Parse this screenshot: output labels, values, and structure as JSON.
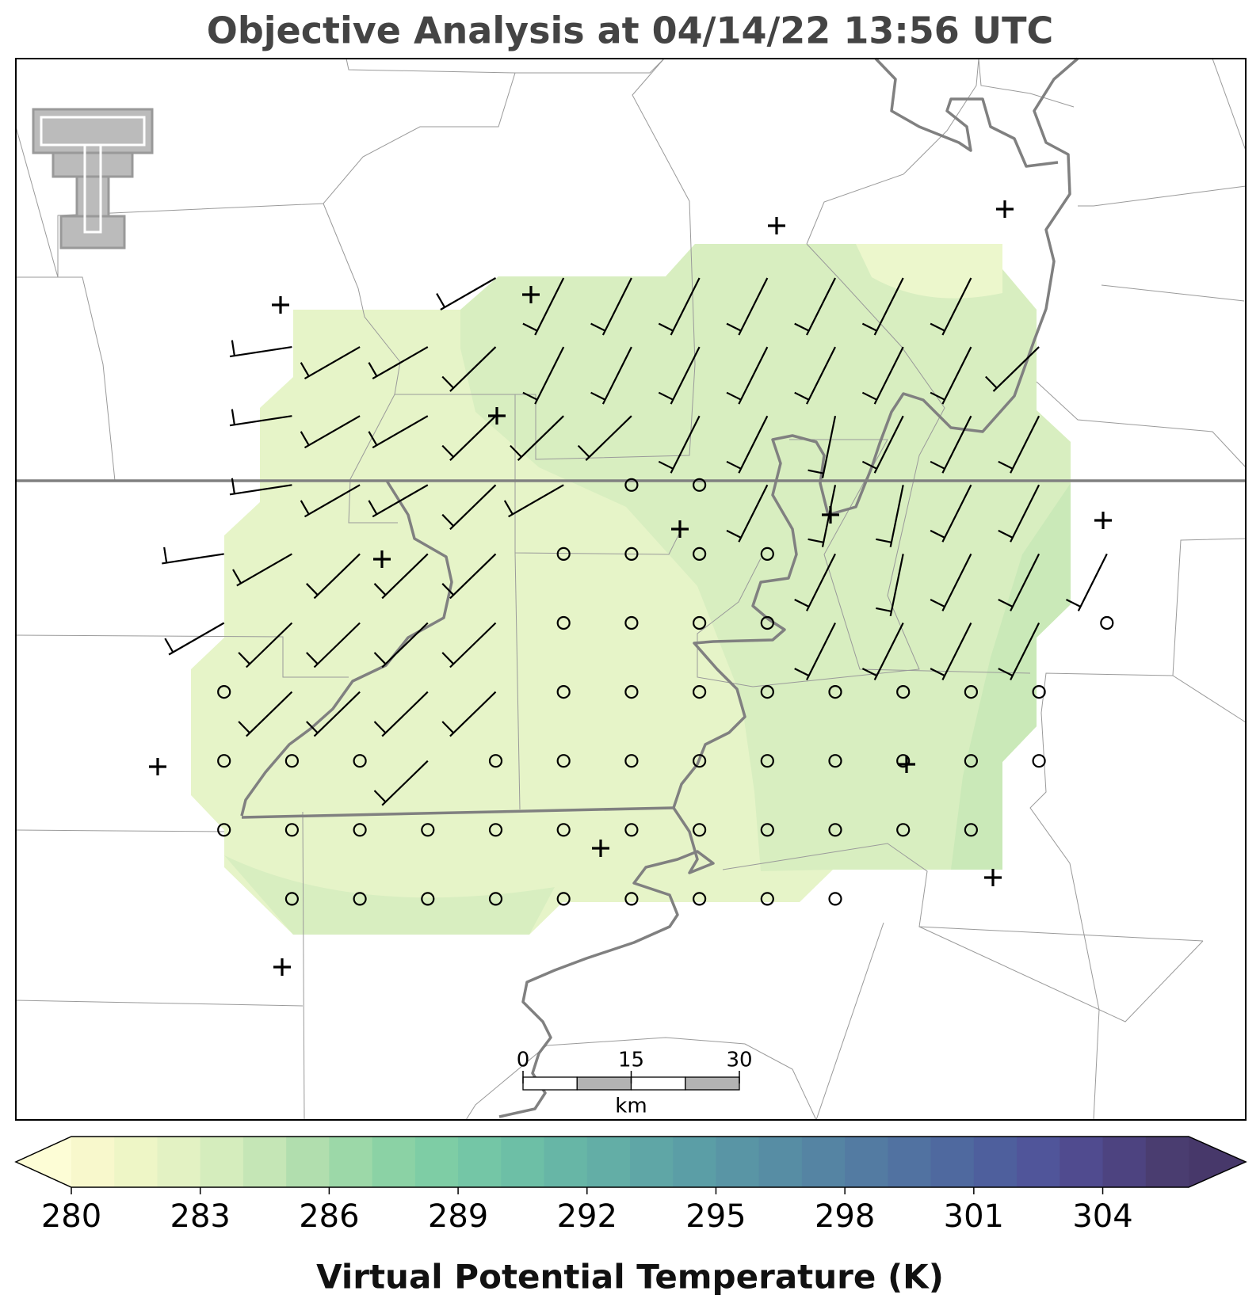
{
  "title": "Objective Analysis at 04/14/22 13:56 UTC",
  "scale_bar": {
    "ticks": [
      0,
      15,
      30
    ],
    "unit": "km"
  },
  "colorbar": {
    "label": "Virtual Potential Temperature (K)",
    "ticks": [
      280,
      283,
      286,
      289,
      292,
      295,
      298,
      301,
      304
    ],
    "levels": [
      280,
      281,
      282,
      283,
      284,
      285,
      286,
      287,
      288,
      289,
      290,
      291,
      292,
      293,
      294,
      295,
      296,
      297,
      298,
      299,
      300,
      301,
      302,
      303,
      304,
      305,
      306
    ],
    "colors": [
      "#f8f8cc",
      "#eef6c6",
      "#e3f2c3",
      "#d5edbd",
      "#c5e6b6",
      "#b1deae",
      "#9cd8a8",
      "#8bd2a5",
      "#7ecda5",
      "#74c6a6",
      "#6dbfa6",
      "#67b6a6",
      "#63aea6",
      "#5fa6a6",
      "#5b9ea6",
      "#5995a5",
      "#578da4",
      "#5584a3",
      "#537ba2",
      "#5172a1",
      "#4f699f",
      "#4e5f9d",
      "#50559a",
      "#504b8f",
      "#4d4380",
      "#4a3d70"
    ],
    "extend_colors": [
      "#fdfdd6",
      "#47386a"
    ]
  }
}
